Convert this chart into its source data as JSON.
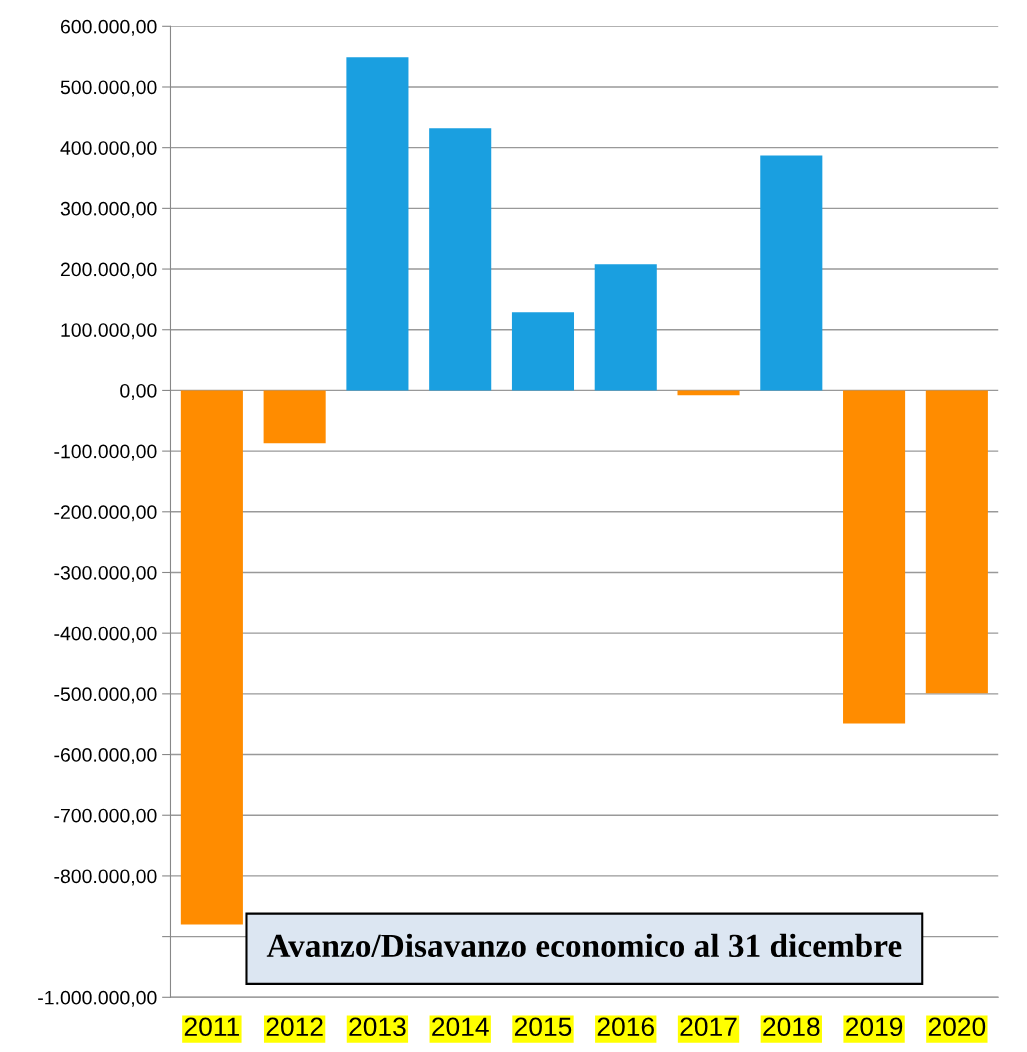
{
  "chart_data": {
    "type": "bar",
    "title": "Avanzo/Disavanzo economico al 31 dicembre",
    "categories": [
      "2011",
      "2012",
      "2013",
      "2014",
      "2015",
      "2016",
      "2017",
      "2018",
      "2019",
      "2020"
    ],
    "values": [
      -880000,
      -87000,
      549000,
      432000,
      129000,
      208000,
      -8000,
      387000,
      -549000,
      -499000
    ],
    "colors": [
      "#ff8c00",
      "#ff8c00",
      "#1a9fe0",
      "#1a9fe0",
      "#1a9fe0",
      "#1a9fe0",
      "#ff8c00",
      "#1a9fe0",
      "#ff8c00",
      "#ff8c00"
    ],
    "ylim": [
      -1000000,
      600000
    ],
    "yticks": [
      {
        "value": -1000000,
        "label": "-1.000.000,00"
      },
      {
        "value": -900000,
        "label": null
      },
      {
        "value": -800000,
        "label": "-800.000,00"
      },
      {
        "value": -700000,
        "label": "-700.000,00"
      },
      {
        "value": -600000,
        "label": "-600.000,00"
      },
      {
        "value": -500000,
        "label": "-500.000,00"
      },
      {
        "value": -400000,
        "label": "-400.000,00"
      },
      {
        "value": -300000,
        "label": "-300.000,00"
      },
      {
        "value": -200000,
        "label": "-200.000,00"
      },
      {
        "value": -100000,
        "label": "-100.000,00"
      },
      {
        "value": 0,
        "label": "0,00"
      },
      {
        "value": 100000,
        "label": "100.000,00"
      },
      {
        "value": 200000,
        "label": "200.000,00"
      },
      {
        "value": 300000,
        "label": "300.000,00"
      },
      {
        "value": 400000,
        "label": "400.000,00"
      },
      {
        "value": 500000,
        "label": "500.000,00"
      },
      {
        "value": 600000,
        "label": "600.000,00"
      }
    ],
    "grid": "y"
  }
}
